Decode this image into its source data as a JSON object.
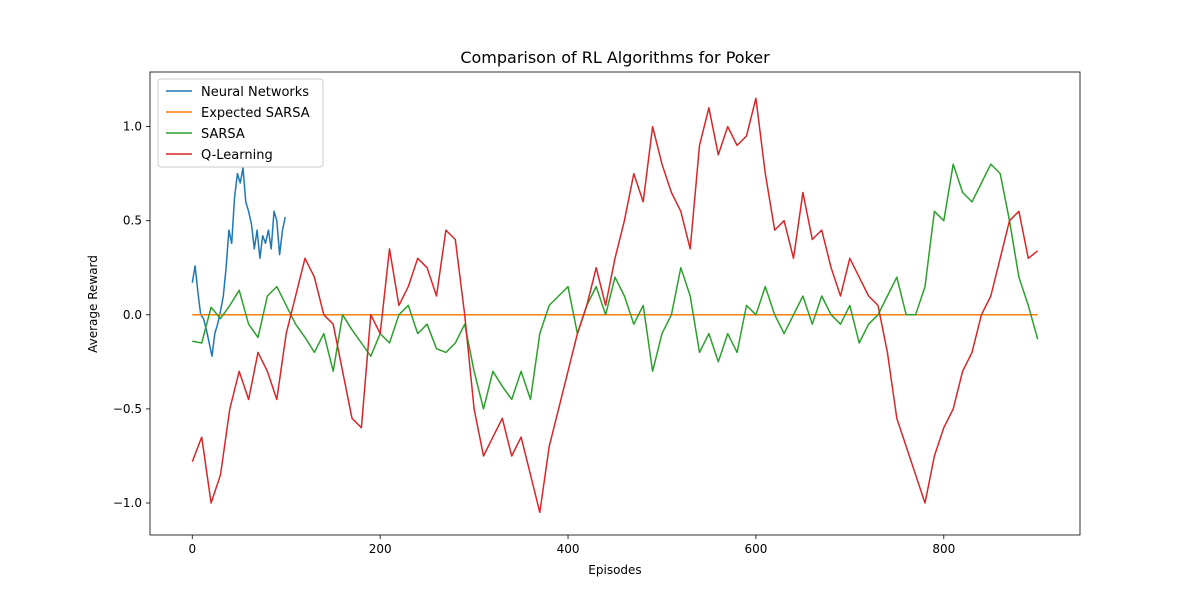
{
  "chart_data": {
    "type": "line",
    "title": "Comparison of RL Algorithms for Poker",
    "xlabel": "Episodes",
    "ylabel": "Average Reward",
    "xlim": [
      -45,
      945
    ],
    "ylim": [
      -1.17,
      1.29
    ],
    "xticks": [
      0,
      200,
      400,
      600,
      800
    ],
    "yticks": [
      -1.0,
      -0.5,
      0.0,
      0.5,
      1.0
    ],
    "xtick_labels": [
      "0",
      "200",
      "400",
      "600",
      "800"
    ],
    "ytick_labels": [
      "−1.0",
      "−0.5",
      "0.0",
      "0.5",
      "1.0"
    ],
    "grid": false,
    "legend_position": "top-left",
    "series": [
      {
        "name": "Neural Networks",
        "color": "#1f77b4",
        "x": [
          0,
          3,
          6,
          9,
          12,
          15,
          18,
          21,
          24,
          27,
          30,
          33,
          36,
          39,
          42,
          45,
          48,
          51,
          54,
          57,
          60,
          63,
          66,
          69,
          72,
          75,
          78,
          81,
          84,
          87,
          90,
          93,
          96,
          99
        ],
        "y": [
          0.17,
          0.26,
          0.12,
          0.0,
          -0.02,
          -0.08,
          -0.15,
          -0.22,
          -0.1,
          -0.05,
          0.02,
          0.1,
          0.25,
          0.45,
          0.38,
          0.62,
          0.75,
          0.7,
          0.78,
          0.6,
          0.55,
          0.48,
          0.35,
          0.45,
          0.3,
          0.42,
          0.38,
          0.45,
          0.35,
          0.55,
          0.5,
          0.32,
          0.45,
          0.52
        ]
      },
      {
        "name": "Expected SARSA",
        "color": "#ff7f0e",
        "x": [
          0,
          900
        ],
        "y": [
          0.0,
          0.0
        ]
      },
      {
        "name": "SARSA",
        "color": "#2ca02c",
        "x": [
          0,
          10,
          20,
          30,
          40,
          50,
          60,
          70,
          80,
          90,
          100,
          110,
          120,
          130,
          140,
          150,
          160,
          170,
          180,
          190,
          200,
          210,
          220,
          230,
          240,
          250,
          260,
          270,
          280,
          290,
          300,
          310,
          320,
          330,
          340,
          350,
          360,
          370,
          380,
          390,
          400,
          410,
          420,
          430,
          440,
          450,
          460,
          470,
          480,
          490,
          500,
          510,
          520,
          530,
          540,
          550,
          560,
          570,
          580,
          590,
          600,
          610,
          620,
          630,
          640,
          650,
          660,
          670,
          680,
          690,
          700,
          710,
          720,
          730,
          740,
          750,
          760,
          770,
          780,
          790,
          800,
          810,
          820,
          830,
          840,
          850,
          860,
          870,
          880,
          890,
          900
        ],
        "y": [
          -0.14,
          -0.15,
          0.04,
          -0.02,
          0.05,
          0.13,
          -0.05,
          -0.12,
          0.1,
          0.15,
          0.05,
          -0.05,
          -0.12,
          -0.2,
          -0.1,
          -0.3,
          0.0,
          -0.08,
          -0.15,
          -0.22,
          -0.1,
          -0.15,
          0.0,
          0.05,
          -0.1,
          -0.05,
          -0.18,
          -0.2,
          -0.15,
          -0.05,
          -0.3,
          -0.5,
          -0.3,
          -0.38,
          -0.45,
          -0.3,
          -0.45,
          -0.1,
          0.05,
          0.1,
          0.15,
          -0.1,
          0.05,
          0.15,
          0.0,
          0.2,
          0.1,
          -0.05,
          0.05,
          -0.3,
          -0.1,
          0.0,
          0.25,
          0.1,
          -0.2,
          -0.1,
          -0.25,
          -0.1,
          -0.2,
          0.05,
          0.0,
          0.15,
          0.0,
          -0.1,
          0.0,
          0.1,
          -0.05,
          0.1,
          0.0,
          -0.05,
          0.05,
          -0.15,
          -0.05,
          0.0,
          0.1,
          0.2,
          0.0,
          0.0,
          0.15,
          0.55,
          0.5,
          0.8,
          0.65,
          0.6,
          0.7,
          0.8,
          0.75,
          0.5,
          0.2,
          0.05,
          -0.13
        ]
      },
      {
        "name": "Q-Learning",
        "color": "#d62728",
        "x": [
          0,
          10,
          20,
          30,
          40,
          50,
          60,
          70,
          80,
          90,
          100,
          110,
          120,
          130,
          140,
          150,
          160,
          170,
          180,
          190,
          200,
          210,
          220,
          230,
          240,
          250,
          260,
          270,
          280,
          290,
          300,
          310,
          320,
          330,
          340,
          350,
          360,
          370,
          380,
          390,
          400,
          410,
          420,
          430,
          440,
          450,
          460,
          470,
          480,
          490,
          500,
          510,
          520,
          530,
          540,
          550,
          560,
          570,
          580,
          590,
          600,
          610,
          620,
          630,
          640,
          650,
          660,
          670,
          680,
          690,
          700,
          710,
          720,
          730,
          740,
          750,
          760,
          770,
          780,
          790,
          800,
          810,
          820,
          830,
          840,
          850,
          860,
          870,
          880,
          890,
          900
        ],
        "y": [
          -0.78,
          -0.65,
          -1.0,
          -0.85,
          -0.5,
          -0.3,
          -0.45,
          -0.2,
          -0.3,
          -0.45,
          -0.1,
          0.1,
          0.3,
          0.2,
          0.0,
          -0.05,
          -0.3,
          -0.55,
          -0.6,
          0.0,
          -0.1,
          0.35,
          0.05,
          0.15,
          0.3,
          0.25,
          0.1,
          0.45,
          0.4,
          0.0,
          -0.5,
          -0.75,
          -0.65,
          -0.55,
          -0.75,
          -0.65,
          -0.85,
          -1.05,
          -0.7,
          -0.5,
          -0.3,
          -0.1,
          0.05,
          0.25,
          0.05,
          0.3,
          0.5,
          0.75,
          0.6,
          1.0,
          0.8,
          0.65,
          0.55,
          0.35,
          0.9,
          1.1,
          0.85,
          1.0,
          0.9,
          0.95,
          1.15,
          0.75,
          0.45,
          0.5,
          0.3,
          0.65,
          0.4,
          0.45,
          0.25,
          0.1,
          0.3,
          0.2,
          0.1,
          0.05,
          -0.2,
          -0.55,
          -0.7,
          -0.85,
          -1.0,
          -0.75,
          -0.6,
          -0.5,
          -0.3,
          -0.2,
          0.0,
          0.1,
          0.3,
          0.5,
          0.55,
          0.3,
          0.34
        ]
      }
    ]
  }
}
